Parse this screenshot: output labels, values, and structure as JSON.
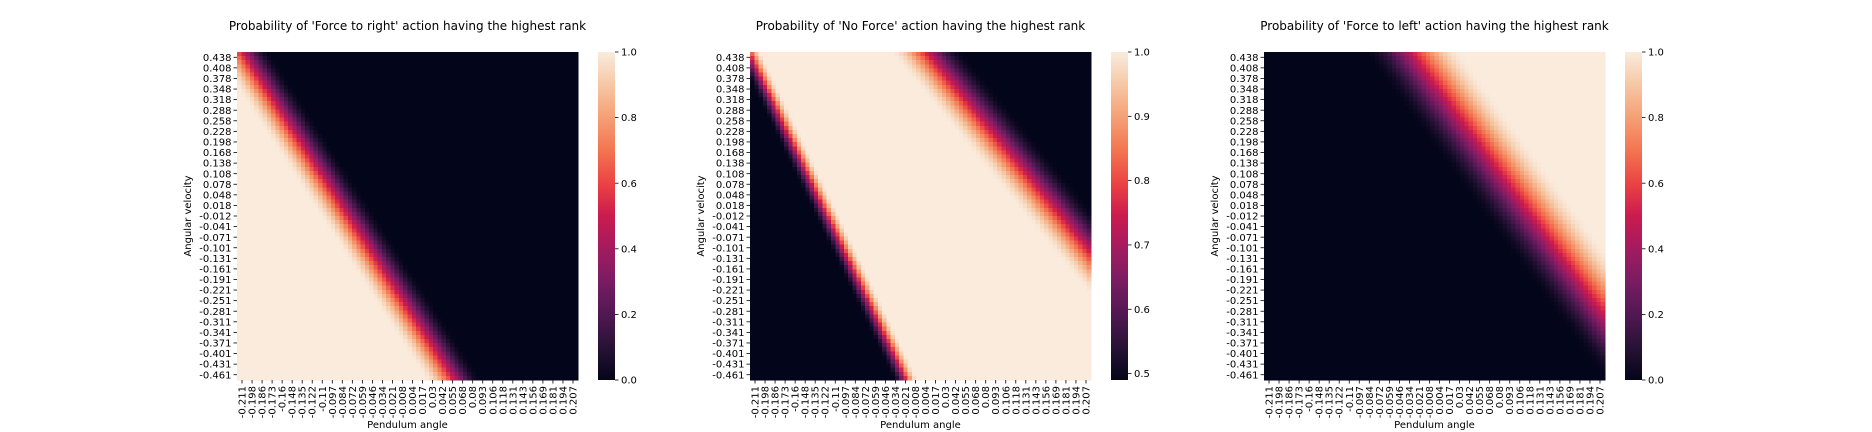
{
  "chart_data": [
    {
      "type": "heatmap",
      "title": "Probability of 'Force to right' action having the highest rank",
      "xlabel": "Pendulum angle",
      "ylabel": "Angular velocity",
      "colormap": "rocket",
      "colorbar": {
        "range": [
          0.0,
          1.0
        ],
        "ticks": [
          0.0,
          0.2,
          0.4,
          0.6,
          0.8,
          1.0
        ],
        "tick_labels": [
          "0.0",
          "0.2",
          "0.4",
          "0.6",
          "0.8",
          "1.0"
        ]
      },
      "x_ticks": [
        "-0.211",
        "-0.198",
        "-0.186",
        "-0.173",
        "-0.16",
        "-0.148",
        "-0.135",
        "-0.122",
        "-0.11",
        "-0.097",
        "-0.084",
        "-0.072",
        "-0.059",
        "-0.046",
        "-0.034",
        "-0.021",
        "-0.008",
        "0.004",
        "0.017",
        "0.03",
        "0.042",
        "0.055",
        "0.068",
        "0.08",
        "0.093",
        "0.106",
        "0.118",
        "0.131",
        "0.143",
        "0.156",
        "0.169",
        "0.181",
        "0.194",
        "0.207"
      ],
      "y_ticks": [
        "0.438",
        "0.408",
        "0.378",
        "0.348",
        "0.318",
        "0.288",
        "0.258",
        "0.228",
        "0.198",
        "0.168",
        "0.138",
        "0.108",
        "0.078",
        "0.048",
        "0.018",
        "-0.012",
        "-0.041",
        "-0.071",
        "-0.101",
        "-0.131",
        "-0.161",
        "-0.191",
        "-0.221",
        "-0.251",
        "-0.281",
        "-0.311",
        "-0.341",
        "-0.371",
        "-0.401",
        "-0.431",
        "-0.461"
      ],
      "value_field": {
        "description": "high (1.0) to the left of a diagonal boundary, low (0.0) to the right",
        "boundary_angle_at_top_velocity": -0.205,
        "boundary_angle_at_bottom_velocity": 0.055,
        "transition_width_angle": 0.07,
        "high_side": "left",
        "high_value": 1.0,
        "low_value": 0.0
      }
    },
    {
      "type": "heatmap",
      "title": "Probability of 'No Force' action having the highest rank",
      "xlabel": "Pendulum angle",
      "ylabel": "Angular velocity",
      "colormap": "rocket",
      "colorbar": {
        "range": [
          0.49,
          1.0
        ],
        "ticks": [
          0.5,
          0.6,
          0.7,
          0.8,
          0.9,
          1.0
        ],
        "tick_labels": [
          "0.5",
          "0.6",
          "0.7",
          "0.8",
          "0.9",
          "1.0"
        ]
      },
      "x_ticks": [
        "-0.211",
        "-0.198",
        "-0.186",
        "-0.173",
        "-0.16",
        "-0.148",
        "-0.135",
        "-0.122",
        "-0.11",
        "-0.097",
        "-0.084",
        "-0.072",
        "-0.059",
        "-0.046",
        "-0.034",
        "-0.021",
        "-0.008",
        "0.004",
        "0.017",
        "0.03",
        "0.042",
        "0.055",
        "0.068",
        "0.08",
        "0.093",
        "0.106",
        "0.118",
        "0.131",
        "0.143",
        "0.156",
        "0.169",
        "0.181",
        "0.194",
        "0.207"
      ],
      "y_ticks": [
        "0.438",
        "0.408",
        "0.378",
        "0.348",
        "0.318",
        "0.288",
        "0.258",
        "0.228",
        "0.198",
        "0.168",
        "0.138",
        "0.108",
        "0.078",
        "0.048",
        "0.018",
        "-0.012",
        "-0.041",
        "-0.071",
        "-0.101",
        "-0.131",
        "-0.161",
        "-0.191",
        "-0.221",
        "-0.251",
        "-0.281",
        "-0.311",
        "-0.341",
        "-0.371",
        "-0.401",
        "-0.431",
        "-0.461"
      ],
      "value_field": {
        "description": "high band (1.0) between two diagonal boundaries; low (~0.5) below-left; decays toward upper-right corner",
        "left_boundary_angle_at_top_velocity": -0.213,
        "left_boundary_angle_at_bottom_velocity": -0.02,
        "left_transition_width_angle": 0.03,
        "right_boundary_angle_at_top_velocity": -0.04,
        "right_boundary_angle_at_bottom_velocity": 0.29,
        "right_transition_width_angle": 0.09,
        "high_value": 1.0,
        "low_value": 0.49
      }
    },
    {
      "type": "heatmap",
      "title": "Probability of 'Force to left' action having the highest rank",
      "xlabel": "Pendulum angle",
      "ylabel": "Angular velocity",
      "colormap": "rocket",
      "colorbar": {
        "range": [
          0.0,
          1.0
        ],
        "ticks": [
          0.0,
          0.2,
          0.4,
          0.6,
          0.8,
          1.0
        ],
        "tick_labels": [
          "0.0",
          "0.2",
          "0.4",
          "0.6",
          "0.8",
          "1.0"
        ]
      },
      "x_ticks": [
        "-0.211",
        "-0.198",
        "-0.186",
        "-0.173",
        "-0.16",
        "-0.148",
        "-0.135",
        "-0.122",
        "-0.11",
        "-0.097",
        "-0.084",
        "-0.072",
        "-0.059",
        "-0.046",
        "-0.034",
        "-0.021",
        "-0.008",
        "0.004",
        "0.017",
        "0.03",
        "0.042",
        "0.055",
        "0.068",
        "0.08",
        "0.093",
        "0.106",
        "0.118",
        "0.131",
        "0.143",
        "0.156",
        "0.169",
        "0.181",
        "0.194",
        "0.207"
      ],
      "y_ticks": [
        "0.438",
        "0.408",
        "0.378",
        "0.348",
        "0.318",
        "0.288",
        "0.258",
        "0.228",
        "0.198",
        "0.168",
        "0.138",
        "0.108",
        "0.078",
        "0.048",
        "0.018",
        "-0.012",
        "-0.041",
        "-0.071",
        "-0.101",
        "-0.131",
        "-0.161",
        "-0.191",
        "-0.221",
        "-0.251",
        "-0.281",
        "-0.311",
        "-0.341",
        "-0.371",
        "-0.401",
        "-0.431",
        "-0.461"
      ],
      "value_field": {
        "description": "low (0.0) to the left of a diagonal boundary, high (1.0) to the right",
        "boundary_angle_at_top_velocity": -0.03,
        "boundary_angle_at_bottom_velocity": 0.265,
        "transition_width_angle": 0.12,
        "high_side": "right",
        "high_value": 1.0,
        "low_value": 0.0
      }
    }
  ]
}
